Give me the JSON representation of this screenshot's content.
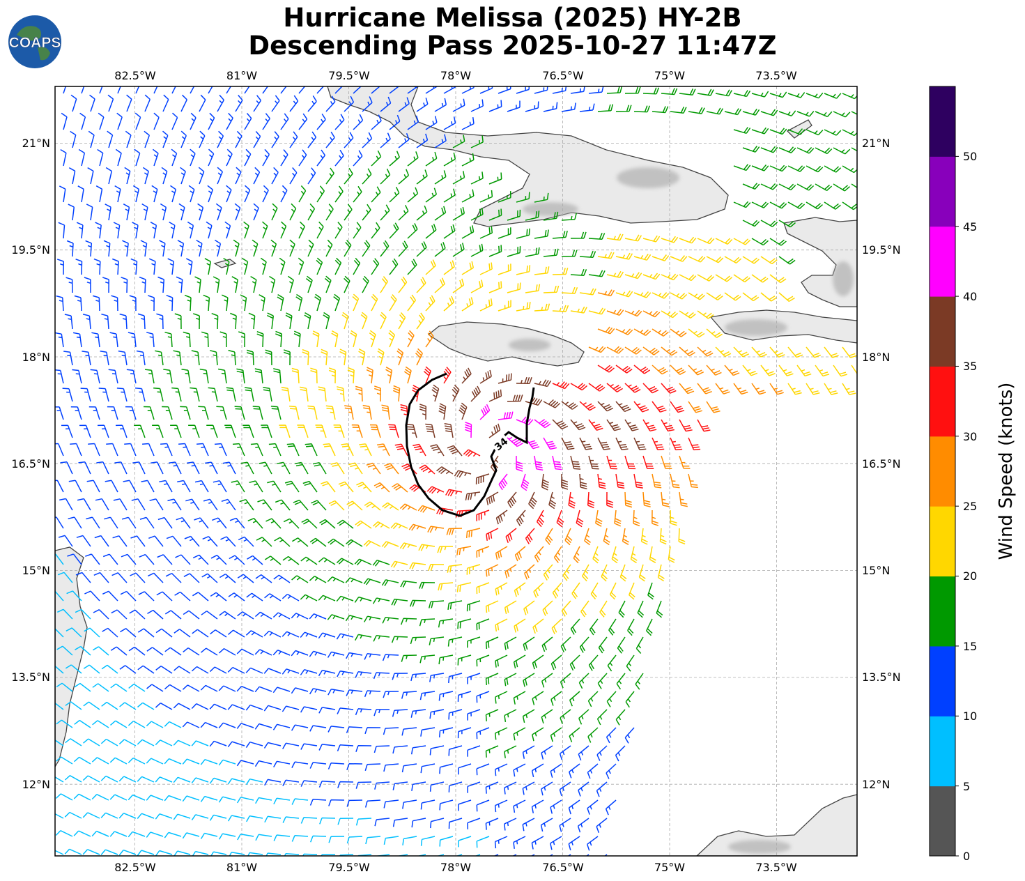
{
  "title": {
    "line1": "Hurricane Melissa (2025) HY-2B",
    "line2": "Descending Pass 2025-10-27 11:47Z"
  },
  "logo": {
    "text": "COAPS",
    "icon": "globe-icon"
  },
  "map": {
    "lon_ticks": [
      "82.5°W",
      "81°W",
      "79.5°W",
      "78°W",
      "76.5°W",
      "75°W",
      "73.5°W"
    ],
    "lat_ticks": [
      "21°N",
      "19.5°N",
      "18°N",
      "16.5°N",
      "15°N",
      "13.5°N",
      "12°N"
    ],
    "contour_label": "34",
    "grid": true,
    "land_color": "#e6e6e6",
    "coast_color": "#444444"
  },
  "colorbar": {
    "label": "Wind Speed (knots)",
    "ticks": [
      "0",
      "5",
      "10",
      "15",
      "20",
      "25",
      "30",
      "35",
      "40",
      "45",
      "50"
    ],
    "bins": [
      {
        "range": "0-5",
        "color": "#555555"
      },
      {
        "range": "5-10",
        "color": "#00bfff"
      },
      {
        "range": "10-15",
        "color": "#0040ff"
      },
      {
        "range": "15-20",
        "color": "#009900"
      },
      {
        "range": "20-25",
        "color": "#ffd700"
      },
      {
        "range": "25-30",
        "color": "#ff8c00"
      },
      {
        "range": "30-35",
        "color": "#ff1010"
      },
      {
        "range": "35-40",
        "color": "#7b3a25"
      },
      {
        "range": "40-45",
        "color": "#ff00ff"
      },
      {
        "range": "45-50",
        "color": "#8800bb"
      },
      {
        "range": "50+",
        "color": "#2e0060"
      }
    ]
  }
}
